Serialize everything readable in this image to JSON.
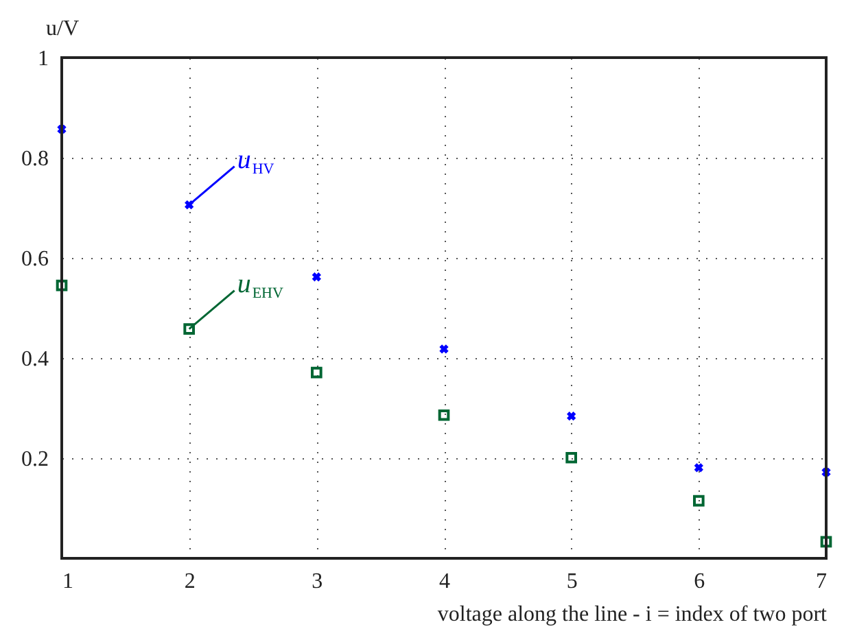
{
  "chart_data": {
    "type": "scatter",
    "xlabel": "voltage along the line - i = index of two port",
    "ylabel": "u/V",
    "x": [
      1,
      2,
      3,
      4,
      5,
      6,
      7
    ],
    "series": [
      {
        "name": "u$_{HV}$",
        "color": "#0000ff",
        "marker": "cross",
        "values": [
          0.857,
          0.706,
          0.562,
          0.418,
          0.284,
          0.181,
          0.172
        ]
      },
      {
        "name": "u$_{EHV}$",
        "color": "#006633",
        "marker": "square",
        "values": [
          0.545,
          0.458,
          0.371,
          0.286,
          0.201,
          0.115,
          0.033
        ]
      }
    ],
    "xlim": [
      1,
      7
    ],
    "xticks": [
      1,
      2,
      3,
      4,
      5,
      6,
      7
    ],
    "ylim": [
      0,
      1
    ],
    "yticks": [
      {
        "value": 0,
        "label": null
      },
      0.2,
      0.4,
      0.6,
      0.8,
      1
    ],
    "grid": true,
    "line_style": "dotted"
  }
}
